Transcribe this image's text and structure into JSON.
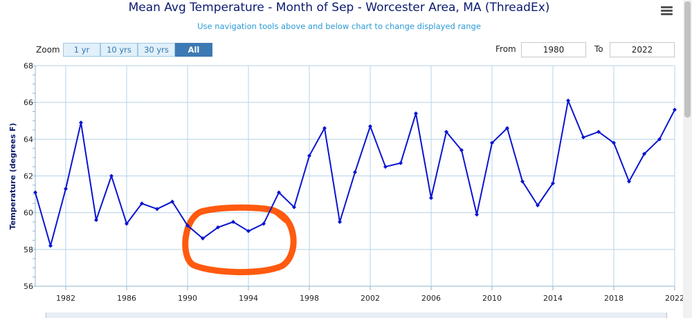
{
  "chart_data": {
    "type": "line",
    "title": "Mean Avg Temperature - Month of Sep - Worcester Area, MA (ThreadEx)",
    "subtitle": "Use navigation tools above and below chart to change displayed range",
    "ylabel": "Temperature (degrees F)",
    "xlabel": "",
    "ylim": [
      56,
      68
    ],
    "xlim": [
      1980,
      2022
    ],
    "y_ticks": [
      "56",
      "58",
      "60",
      "62",
      "64",
      "66",
      "68"
    ],
    "x_ticks": [
      "1982",
      "1986",
      "1990",
      "1994",
      "1998",
      "2002",
      "2006",
      "2010",
      "2014",
      "2018",
      "2022"
    ],
    "series": [
      {
        "x": [
          1980,
          1981,
          1982,
          1983,
          1984,
          1985,
          1986,
          1987,
          1988,
          1989,
          1990,
          1991,
          1992,
          1993,
          1994,
          1995,
          1996,
          1997,
          1998,
          1999,
          2000,
          2001,
          2002,
          2003,
          2004,
          2005,
          2006,
          2007,
          2008,
          2009,
          2010,
          2011,
          2012,
          2013,
          2014,
          2015,
          2016,
          2017,
          2018,
          2019,
          2020,
          2021,
          2022
        ],
        "values": [
          61.1,
          58.2,
          61.3,
          64.9,
          59.6,
          62.0,
          59.4,
          60.5,
          60.2,
          60.6,
          59.3,
          58.6,
          59.2,
          59.5,
          59.0,
          59.4,
          61.1,
          60.3,
          63.1,
          64.6,
          59.5,
          62.2,
          64.7,
          62.5,
          62.7,
          65.4,
          60.8,
          64.4,
          63.4,
          59.9,
          63.8,
          64.6,
          61.7,
          60.4,
          61.6,
          66.1,
          64.1,
          64.4,
          63.8,
          61.7,
          63.2,
          64.0,
          65.6
        ]
      }
    ],
    "grid": true,
    "legend": "none",
    "line_color": "#0a14d0",
    "annotation_color": "#ff5a0f"
  },
  "controls": {
    "zoom_label": "Zoom",
    "zoom_buttons": [
      "1 yr",
      "10 yrs",
      "30 yrs",
      "All"
    ],
    "from_label": "From",
    "from_value": "1980",
    "to_label": "To",
    "to_value": "2022"
  },
  "icons": {
    "menu": "hamburger-menu-icon"
  }
}
